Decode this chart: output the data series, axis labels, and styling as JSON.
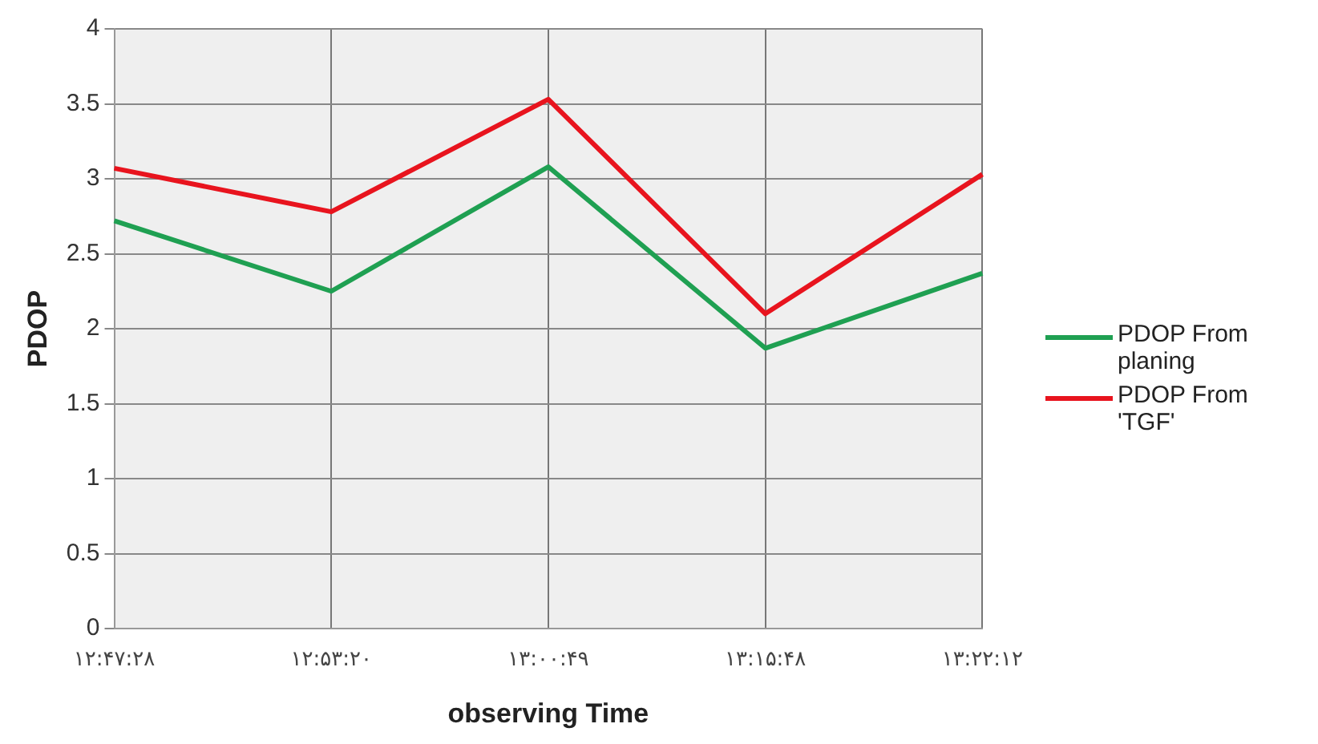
{
  "chart_data": {
    "type": "line",
    "xlabel": "observing Time",
    "ylabel": "PDOP",
    "categories": [
      "۱۲:۴۷:۲۸",
      "۱۲:۵۳:۲۰",
      "۱۳:۰۰:۴۹",
      "۱۳:۱۵:۴۸",
      "۱۳:۲۲:۱۲"
    ],
    "series": [
      {
        "name": "PDOP From planing",
        "color": "#1fa052",
        "values": [
          2.72,
          2.25,
          3.08,
          1.87,
          2.37
        ]
      },
      {
        "name": "PDOP From 'TGF'",
        "color": "#e8141e",
        "values": [
          3.07,
          2.78,
          3.53,
          2.1,
          3.03
        ]
      }
    ],
    "ylim": [
      0,
      4
    ],
    "yticks": [
      0,
      0.5,
      1,
      1.5,
      2,
      2.5,
      3,
      3.5,
      4
    ],
    "grid": true,
    "legend": "right",
    "marker": "none",
    "line_style": "solid"
  }
}
